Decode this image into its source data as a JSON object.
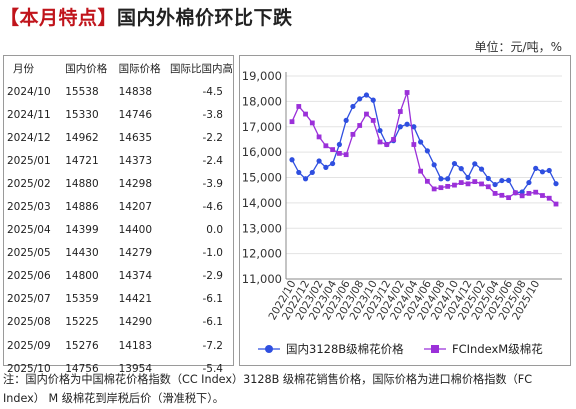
{
  "title": {
    "prefix": "【本月特点】",
    "text": "国内外棉价环比下跌"
  },
  "unit": "单位：元/吨，%",
  "table": {
    "headers": [
      "月份",
      "国内价格",
      "国际价格",
      "国际比国内高"
    ],
    "rows": [
      [
        "2024/10",
        "15538",
        "14838",
        "-4.5"
      ],
      [
        "2024/11",
        "15330",
        "14746",
        "-3.8"
      ],
      [
        "2024/12",
        "14962",
        "14635",
        "-2.2"
      ],
      [
        "2025/01",
        "14721",
        "14373",
        "-2.4"
      ],
      [
        "2025/02",
        "14880",
        "14298",
        "-3.9"
      ],
      [
        "2025/03",
        "14886",
        "14207",
        "-4.6"
      ],
      [
        "2025/04",
        "14399",
        "14400",
        "0.0"
      ],
      [
        "2025/05",
        "14430",
        "14279",
        "-1.0"
      ],
      [
        "2025/06",
        "14800",
        "14374",
        "-2.9"
      ],
      [
        "2025/07",
        "15359",
        "14421",
        "-6.1"
      ],
      [
        "2025/08",
        "15225",
        "14290",
        "-6.1"
      ],
      [
        "2025/09",
        "15276",
        "14183",
        "-7.2"
      ],
      [
        "2025/10",
        "14756",
        "13954",
        "-5.4"
      ]
    ]
  },
  "chart_data": {
    "type": "line",
    "ylim": [
      11000,
      19000
    ],
    "yticks": [
      11000,
      12000,
      13000,
      14000,
      15000,
      16000,
      17000,
      18000,
      19000
    ],
    "ytick_labels": [
      "11,000",
      "12,000",
      "13,000",
      "14,000",
      "15,000",
      "16,000",
      "17,000",
      "18,000",
      "19,000"
    ],
    "xtick_labels": [
      "2022/10",
      "2022/12",
      "2023/02",
      "2023/04",
      "2023/06",
      "2023/08",
      "2023/10",
      "2023/12",
      "2024/02",
      "2024/04",
      "2024/06",
      "2024/08",
      "2024/10",
      "2024/12",
      "2025/02",
      "2025/04",
      "2025/06",
      "2025/08",
      "2025/10"
    ],
    "grid": true,
    "legend_position": "bottom",
    "series": [
      {
        "name": "国内3128B级棉花价格",
        "color": "#2f4fe0",
        "marker": "circle",
        "values": [
          15700,
          15200,
          14950,
          15200,
          15650,
          15400,
          15550,
          16300,
          17250,
          17800,
          18100,
          18250,
          18050,
          16850,
          16300,
          16450,
          17000,
          17100,
          17000,
          16400,
          16050,
          15500,
          14950,
          14950,
          15550,
          15350,
          15000,
          15538,
          15330,
          14962,
          14721,
          14880,
          14886,
          14399,
          14430,
          14800,
          15359,
          15225,
          15276,
          14756
        ]
      },
      {
        "name": "FCIndexM级棉花",
        "color": "#9b30d9",
        "marker": "square",
        "values": [
          17200,
          17800,
          17500,
          17150,
          16600,
          16250,
          16100,
          15950,
          15900,
          16700,
          17050,
          17500,
          17250,
          16400,
          16300,
          16500,
          17600,
          18350,
          16300,
          15250,
          14850,
          14550,
          14600,
          14650,
          14700,
          14800,
          14750,
          14838,
          14746,
          14635,
          14373,
          14298,
          14207,
          14400,
          14279,
          14374,
          14421,
          14290,
          14183,
          13954
        ]
      }
    ]
  },
  "note": "注：国内价格为中国棉花价格指数（CC Index）3128B 级棉花销售价格，国际价格为进口棉价格指数（FC Index） M 级棉花到岸税后价（滑准税下）。"
}
